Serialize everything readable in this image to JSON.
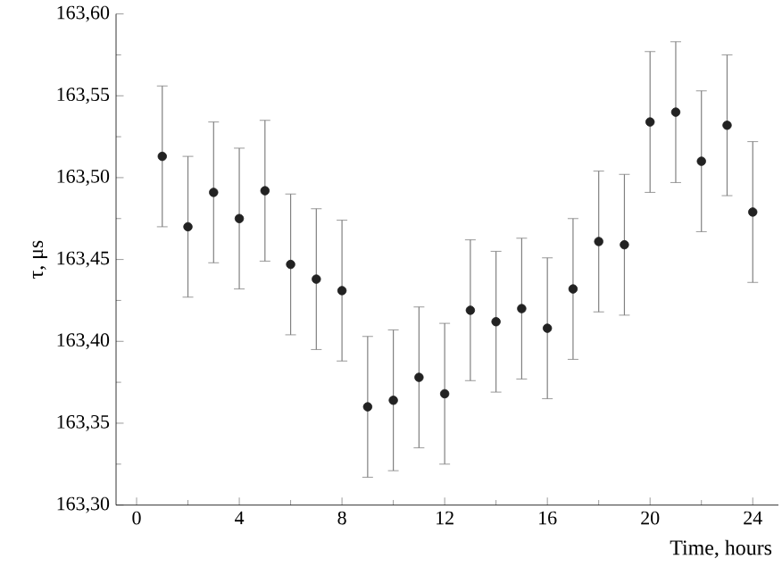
{
  "chart_data": {
    "type": "scatter",
    "xlabel": "Time, hours",
    "ylabel": "τ, μs",
    "x": [
      1,
      2,
      3,
      4,
      5,
      6,
      7,
      8,
      9,
      10,
      11,
      12,
      13,
      14,
      15,
      16,
      17,
      18,
      19,
      20,
      21,
      22,
      23,
      24
    ],
    "values": [
      163.513,
      163.47,
      163.491,
      163.475,
      163.492,
      163.447,
      163.438,
      163.431,
      163.36,
      163.364,
      163.378,
      163.368,
      163.419,
      163.412,
      163.42,
      163.408,
      163.432,
      163.461,
      163.459,
      163.534,
      163.54,
      163.51,
      163.532,
      163.479
    ],
    "errors": [
      0.043,
      0.043,
      0.043,
      0.043,
      0.043,
      0.043,
      0.043,
      0.043,
      0.043,
      0.043,
      0.043,
      0.043,
      0.043,
      0.043,
      0.043,
      0.043,
      0.043,
      0.043,
      0.043,
      0.043,
      0.043,
      0.043,
      0.043,
      0.043
    ],
    "color": "#222222",
    "marker": "circle",
    "grid": false,
    "xlim": [
      -0.8,
      25
    ],
    "xticks": [
      0,
      4,
      8,
      12,
      16,
      20,
      24
    ],
    "ylim": [
      163.3,
      163.6
    ],
    "yticks": [
      {
        "value": 163.3,
        "label": "163,30"
      },
      {
        "value": 163.35,
        "label": "163,35"
      },
      {
        "value": 163.4,
        "label": "163,40"
      },
      {
        "value": 163.45,
        "label": "163,45"
      },
      {
        "value": 163.5,
        "label": "163,50"
      },
      {
        "value": 163.55,
        "label": "163,55"
      },
      {
        "value": 163.6,
        "label": "163,60"
      }
    ]
  }
}
